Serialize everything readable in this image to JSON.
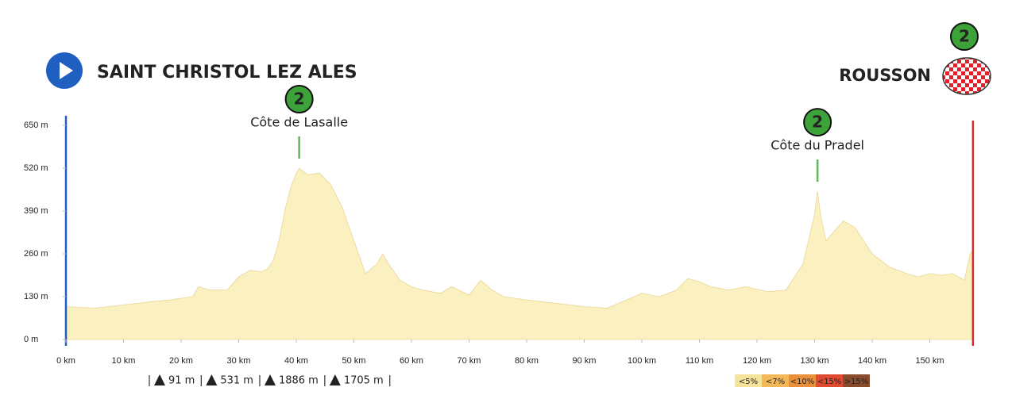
{
  "chart_data": {
    "type": "area",
    "start": "SAINT CHRISTOL LEZ ALES",
    "finish": "ROUSSON",
    "finish_category": "2",
    "color": "#fbf0c0",
    "x": [
      0,
      5,
      10,
      15,
      18,
      20,
      22,
      23,
      25,
      28,
      30,
      32,
      34,
      35,
      36,
      37,
      38,
      39,
      40,
      40.5,
      42,
      44,
      46,
      48,
      50,
      52,
      54,
      55,
      56,
      58,
      60,
      62,
      65,
      67,
      70,
      72,
      74,
      76,
      80,
      85,
      90,
      94,
      96,
      100,
      103,
      106,
      108,
      110,
      112,
      115,
      118,
      122,
      125,
      128,
      130,
      130.5,
      131,
      132,
      134,
      135,
      137,
      140,
      143,
      146,
      148,
      150,
      152,
      154,
      156,
      157,
      157.5
    ],
    "values": [
      100,
      95,
      105,
      115,
      120,
      125,
      130,
      160,
      150,
      150,
      190,
      210,
      205,
      215,
      240,
      300,
      390,
      460,
      505,
      520,
      500,
      505,
      470,
      400,
      300,
      200,
      230,
      260,
      230,
      180,
      160,
      150,
      140,
      160,
      135,
      180,
      150,
      130,
      120,
      110,
      100,
      95,
      110,
      140,
      130,
      150,
      185,
      175,
      160,
      150,
      160,
      145,
      150,
      230,
      380,
      450,
      380,
      300,
      340,
      360,
      340,
      260,
      220,
      200,
      190,
      200,
      195,
      200,
      180,
      260,
      270
    ],
    "xlim": [
      0,
      157.5
    ],
    "ylim": [
      0,
      650
    ],
    "xticks": [
      {
        "value": 0,
        "label": "0 km"
      },
      {
        "value": 10,
        "label": "10 km"
      },
      {
        "value": 20,
        "label": "20 km"
      },
      {
        "value": 30,
        "label": "30 km"
      },
      {
        "value": 40,
        "label": "40 km"
      },
      {
        "value": 50,
        "label": "50 km"
      },
      {
        "value": 60,
        "label": "60 km"
      },
      {
        "value": 70,
        "label": "70 km"
      },
      {
        "value": 80,
        "label": "80 km"
      },
      {
        "value": 90,
        "label": "90 km"
      },
      {
        "value": 100,
        "label": "100 km"
      },
      {
        "value": 110,
        "label": "110 km"
      },
      {
        "value": 120,
        "label": "120 km"
      },
      {
        "value": 130,
        "label": "130 km"
      },
      {
        "value": 140,
        "label": "140 km"
      },
      {
        "value": 150,
        "label": "150 km"
      }
    ],
    "yticks": [
      {
        "value": 0,
        "label": "0 m"
      },
      {
        "value": 130,
        "label": "130 m"
      },
      {
        "value": 260,
        "label": "260 m"
      },
      {
        "value": 390,
        "label": "390 m"
      },
      {
        "value": 520,
        "label": "520 m"
      },
      {
        "value": 650,
        "label": "650 m"
      }
    ],
    "climbs": [
      {
        "label": "Côte de Lasalle",
        "category": "2",
        "x": 40.5
      },
      {
        "label": "Côte du Pradel",
        "category": "2",
        "x": 130.5
      }
    ],
    "stats": [
      "91 m",
      "531 m",
      "1886 m",
      "1705 m"
    ],
    "slope_legend": [
      {
        "label": "<5%",
        "color": "#f6e39a"
      },
      {
        "label": "<7%",
        "color": "#f3b959"
      },
      {
        "label": "<10%",
        "color": "#ec8f3a"
      },
      {
        "label": "<15%",
        "color": "#e04a30"
      },
      {
        "label": ">15%",
        "color": "#8a4a2c"
      }
    ]
  }
}
